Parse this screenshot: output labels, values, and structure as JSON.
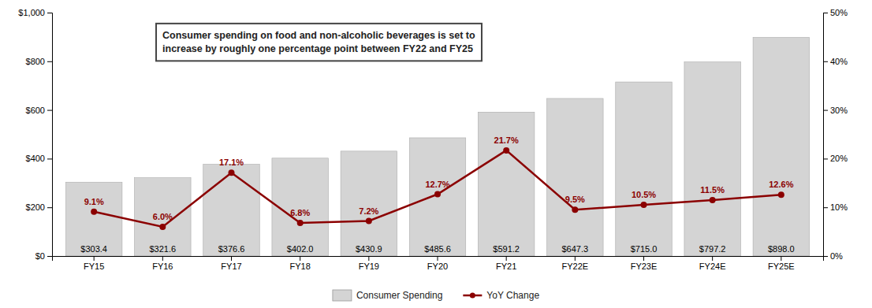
{
  "chart_data": {
    "type": "bar",
    "categories": [
      "FY15",
      "FY16",
      "FY17",
      "FY18",
      "FY19",
      "FY20",
      "FY21",
      "FY22E",
      "FY23E",
      "FY24E",
      "FY25E"
    ],
    "series": [
      {
        "name": "Consumer Spending",
        "type": "bar",
        "color": "#d4d4d4",
        "values": [
          303.4,
          321.6,
          376.6,
          402.0,
          430.9,
          485.6,
          591.2,
          647.3,
          715.0,
          797.2,
          898.0
        ],
        "value_labels": [
          "$303.4",
          "$321.6",
          "$376.6",
          "$402.0",
          "$430.9",
          "$485.6",
          "$591.2",
          "$647.3",
          "$715.0",
          "$797.2",
          "$898.0"
        ],
        "data_labels": true
      },
      {
        "name": "YoY Change",
        "type": "line",
        "axis": "y2",
        "color": "#8b0000",
        "marker": "circle",
        "values": [
          9.1,
          6.0,
          17.1,
          6.8,
          7.2,
          12.7,
          21.7,
          9.5,
          10.5,
          11.5,
          12.6
        ],
        "value_labels": [
          "9.1%",
          "6.0%",
          "17.1%",
          "6.8%",
          "7.2%",
          "12.7%",
          "21.7%",
          "9.5%",
          "10.5%",
          "11.5%",
          "12.6%"
        ],
        "data_labels": true
      }
    ],
    "ylim": [
      0,
      1000
    ],
    "yticks": [
      {
        "value": 0,
        "label": "$0"
      },
      {
        "value": 200,
        "label": "$200"
      },
      {
        "value": 400,
        "label": "$400"
      },
      {
        "value": 600,
        "label": "$600"
      },
      {
        "value": 800,
        "label": "$800"
      },
      {
        "value": 1000,
        "label": "$1,000"
      }
    ],
    "y2lim": [
      0,
      50
    ],
    "y2ticks": [
      {
        "value": 0,
        "label": "0%"
      },
      {
        "value": 10,
        "label": "10%"
      },
      {
        "value": 20,
        "label": "20%"
      },
      {
        "value": 30,
        "label": "30%"
      },
      {
        "value": 40,
        "label": "40%"
      },
      {
        "value": 50,
        "label": "50%"
      }
    ],
    "annotation": "Consumer spending on food and non-alcoholic beverages is set to\nincrease by roughly one percentage point between FY22 and FY25",
    "grid": false,
    "legend": "bottom"
  }
}
